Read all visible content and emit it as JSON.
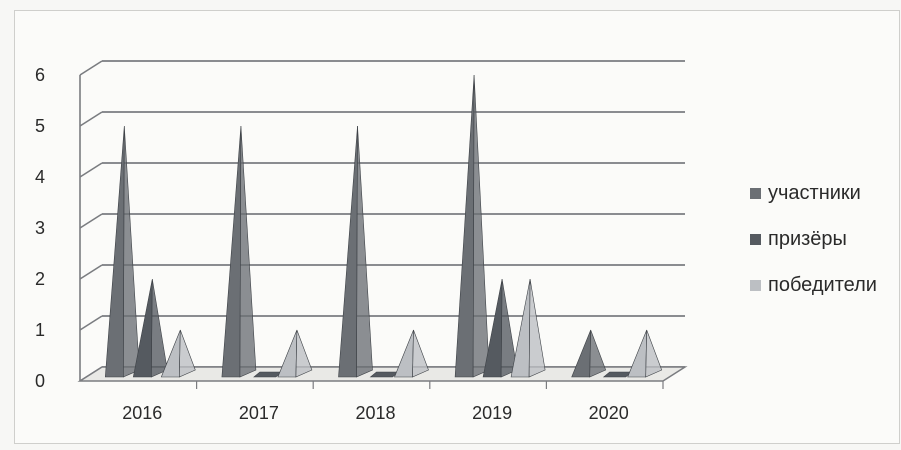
{
  "chart_data": {
    "type": "bar",
    "bar_shape": "pyramid-3d",
    "categories": [
      "2016",
      "2017",
      "2018",
      "2019",
      "2020"
    ],
    "series": [
      {
        "name": "участники",
        "values": [
          5,
          5,
          5,
          6,
          1
        ]
      },
      {
        "name": "призёры",
        "values": [
          2,
          0,
          0,
          2,
          0
        ]
      },
      {
        "name": "победители",
        "values": [
          1,
          1,
          1,
          2,
          1
        ]
      }
    ],
    "y_ticks": [
      "0",
      "1",
      "2",
      "3",
      "4",
      "5",
      "6"
    ],
    "ylim": [
      0,
      6
    ],
    "grid": true,
    "legend_position": "right",
    "colors": {
      "участники": "#6b6f74",
      "призёры": "#555a60",
      "победители": "#bcbfc3",
      "grid": "#7a7c80"
    }
  }
}
